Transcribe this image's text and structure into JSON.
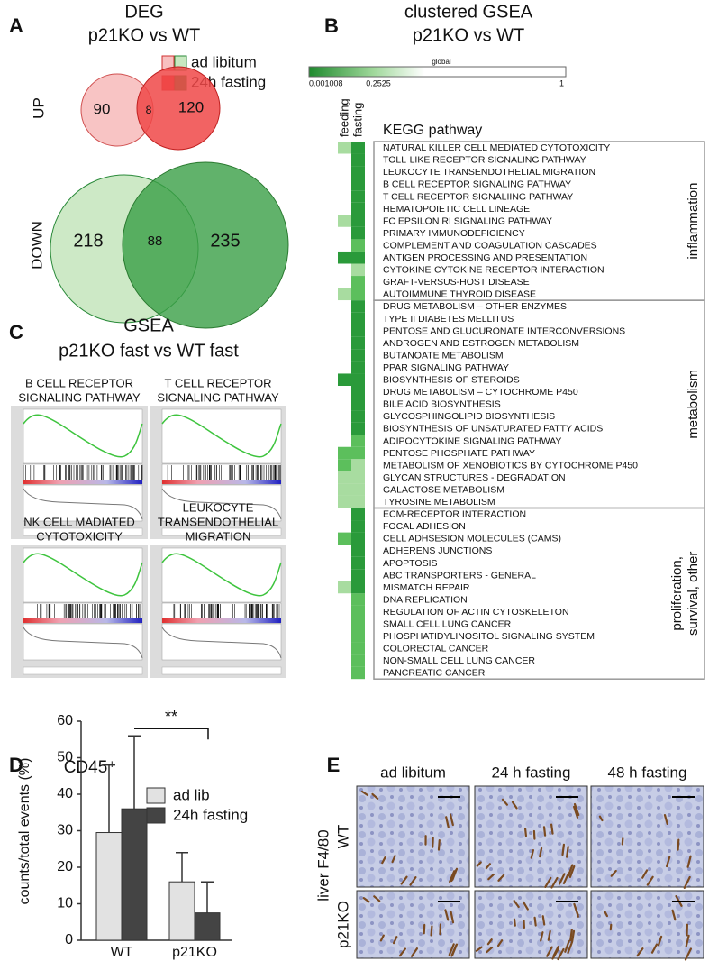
{
  "panel_a": {
    "letter": "A",
    "title": "DEG",
    "subtitle": "p21KO vs WT",
    "legend": [
      "ad libitum",
      "24h fasting"
    ],
    "up_label": "UP",
    "down_label": "DOWN",
    "up": [
      90,
      8,
      120
    ],
    "down": [
      218,
      88,
      235
    ]
  },
  "panel_b": {
    "letter": "B",
    "title": "clustered GSEA",
    "subtitle": "p21KO vs WT",
    "scale_title": "global",
    "scale_labels": [
      "0.001008",
      "0.2525",
      "1"
    ],
    "columns": [
      "feeding",
      "fasting"
    ],
    "header": "KEGG pathway",
    "groups": [
      {
        "label": [
          "inflammation"
        ],
        "rows": [
          {
            "name": "NATURAL KILLER CELL MEDIATED CYTOTOXICITY",
            "feeding": "#a8dca0",
            "fasting": "#2a9a3a"
          },
          {
            "name": "TOLL-LIKE RECEPTOR SIGNALING PATHWAY",
            "feeding": "#ffffff",
            "fasting": "#2a9a3a"
          },
          {
            "name": "LEUKOCYTE TRANSENDOTHELIAL MIGRATION",
            "feeding": "#ffffff",
            "fasting": "#2a9a3a"
          },
          {
            "name": "B CELL RECEPTOR SIGNALING PATHWAY",
            "feeding": "#ffffff",
            "fasting": "#2a9a3a"
          },
          {
            "name": "T CELL RECEPTOR SIGNALIING PATHWAY",
            "feeding": "#ffffff",
            "fasting": "#2a9a3a"
          },
          {
            "name": "HEMATOPOIETIC CELL LINEAGE",
            "feeding": "#ffffff",
            "fasting": "#2a9a3a"
          },
          {
            "name": "FC EPSILON RI SIGNALING PATHWAY",
            "feeding": "#a8dca0",
            "fasting": "#2a9a3a"
          },
          {
            "name": "PRIMARY IMMUNODEFICIENCY",
            "feeding": "#ffffff",
            "fasting": "#2a9a3a"
          },
          {
            "name": "COMPLEMENT AND COAGULATION CASCADES",
            "feeding": "#ffffff",
            "fasting": "#5cbf5c"
          },
          {
            "name": "ANTIGEN PROCESSING AND PRESENTATION",
            "feeding": "#2a9a3a",
            "fasting": "#2a9a3a"
          },
          {
            "name": "CYTOKINE-CYTOKINE RECEPTOR INTERACTION",
            "feeding": "#ffffff",
            "fasting": "#a8dca0"
          },
          {
            "name": "GRAFT-VERSUS-HOST DISEASE",
            "feeding": "#ffffff",
            "fasting": "#5cbf5c"
          },
          {
            "name": "AUTOIMMUNE THYROID DISEASE",
            "feeding": "#a8dca0",
            "fasting": "#5cbf5c"
          }
        ]
      },
      {
        "label": [
          "metabolism"
        ],
        "rows": [
          {
            "name": "DRUG METABOLISM – OTHER ENZYMES",
            "feeding": "#ffffff",
            "fasting": "#2a9a3a"
          },
          {
            "name": "TYPE II DIABETES MELLITUS",
            "feeding": "#ffffff",
            "fasting": "#2a9a3a"
          },
          {
            "name": "PENTOSE AND GLUCURONATE INTERCONVERSIONS",
            "feeding": "#ffffff",
            "fasting": "#2a9a3a"
          },
          {
            "name": "ANDROGEN AND ESTROGEN METABOLISM",
            "feeding": "#ffffff",
            "fasting": "#2a9a3a"
          },
          {
            "name": "BUTANOATE METABOLISM",
            "feeding": "#ffffff",
            "fasting": "#2a9a3a"
          },
          {
            "name": "PPAR SIGNALING PATHWAY",
            "feeding": "#ffffff",
            "fasting": "#2a9a3a"
          },
          {
            "name": "BIOSYNTHESIS OF STEROIDS",
            "feeding": "#2a9a3a",
            "fasting": "#2a9a3a"
          },
          {
            "name": "DRUG METABOLISM – CYTOCHROME P450",
            "feeding": "#ffffff",
            "fasting": "#2a9a3a"
          },
          {
            "name": "BILE ACID BIOSYNTHESIS",
            "feeding": "#ffffff",
            "fasting": "#2a9a3a"
          },
          {
            "name": "GLYCOSPHINGOLIPID BIOSYNTHESIS",
            "feeding": "#ffffff",
            "fasting": "#2a9a3a"
          },
          {
            "name": "BIOSYNTHESIS OF UNSATURATED FATTY ACIDS",
            "feeding": "#ffffff",
            "fasting": "#2a9a3a"
          },
          {
            "name": "ADIPOCYTOKINE SIGNALING PATHWAY",
            "feeding": "#ffffff",
            "fasting": "#5cbf5c"
          },
          {
            "name": "PENTOSE PHOSPHATE PATHWAY",
            "feeding": "#5cbf5c",
            "fasting": "#5cbf5c"
          },
          {
            "name": "METABOLISM OF XENOBIOTICS BY CYTOCHROME P450",
            "feeding": "#5cbf5c",
            "fasting": "#a8dca0"
          },
          {
            "name": "GLYCAN STRUCTURES - DEGRADATION",
            "feeding": "#a8dca0",
            "fasting": "#a8dca0"
          },
          {
            "name": "GALACTOSE METABOLISM",
            "feeding": "#a8dca0",
            "fasting": "#a8dca0"
          },
          {
            "name": "TYROSINE METABOLISM",
            "feeding": "#a8dca0",
            "fasting": "#a8dca0"
          }
        ]
      },
      {
        "label": [
          "proliferation,",
          "survival, other"
        ],
        "rows": [
          {
            "name": "ECM-RECEPTOR INTERACTION",
            "feeding": "#ffffff",
            "fasting": "#2a9a3a"
          },
          {
            "name": "FOCAL ADHESION",
            "feeding": "#ffffff",
            "fasting": "#2a9a3a"
          },
          {
            "name": "CELL ADHSESION MOLECULES (CAMS)",
            "feeding": "#5cbf5c",
            "fasting": "#2a9a3a"
          },
          {
            "name": "ADHERENS JUNCTIONS",
            "feeding": "#ffffff",
            "fasting": "#2a9a3a"
          },
          {
            "name": "APOPTOSIS",
            "feeding": "#ffffff",
            "fasting": "#2a9a3a"
          },
          {
            "name": "ABC TRANSPORTERS - GENERAL",
            "feeding": "#ffffff",
            "fasting": "#2a9a3a"
          },
          {
            "name": "MISMATCH REPAIR",
            "feeding": "#a8dca0",
            "fasting": "#2a9a3a"
          },
          {
            "name": "DNA REPLICATION",
            "feeding": "#ffffff",
            "fasting": "#5cbf5c"
          },
          {
            "name": "REGULATION OF ACTIN CYTOSKELETON",
            "feeding": "#ffffff",
            "fasting": "#5cbf5c"
          },
          {
            "name": "SMALL CELL LUNG CANCER",
            "feeding": "#ffffff",
            "fasting": "#5cbf5c"
          },
          {
            "name": "PHOSPHATIDYLINOSITOL SIGNALING SYSTEM",
            "feeding": "#ffffff",
            "fasting": "#5cbf5c"
          },
          {
            "name": "COLORECTAL CANCER",
            "feeding": "#ffffff",
            "fasting": "#5cbf5c"
          },
          {
            "name": "NON-SMALL CELL LUNG CANCER",
            "feeding": "#ffffff",
            "fasting": "#5cbf5c"
          },
          {
            "name": "PANCREATIC CANCER",
            "feeding": "#ffffff",
            "fasting": "#5cbf5c"
          }
        ]
      }
    ]
  },
  "panel_c": {
    "letter": "C",
    "title": "GSEA",
    "subtitle": "p21KO fast vs WT fast",
    "plots": [
      {
        "title": [
          "B CELL RECEPTOR",
          "SIGNALING PATHWAY"
        ]
      },
      {
        "title": [
          "T CELL RECEPTOR",
          "SIGNALING PATHWAY"
        ]
      },
      {
        "title": [
          "NK CELL MADIATED",
          "CYTOTOXICITY"
        ]
      },
      {
        "title": [
          "LEUKOCYTE",
          "TRANSENDOTHELIAL",
          "MIGRATION"
        ]
      }
    ]
  },
  "chart_data": {
    "type": "bar",
    "letter": "D",
    "title": "CD45⁺",
    "ylabel": "counts/total events (%)",
    "categories": [
      "WT",
      "p21KO"
    ],
    "series": [
      {
        "name": "ad lib",
        "color": "#e2e2e2",
        "values": [
          29.5,
          16
        ],
        "errors": [
          18.5,
          8
        ]
      },
      {
        "name": "24h fasting",
        "color": "#444444",
        "values": [
          36,
          7.5
        ],
        "errors": [
          20,
          8.5
        ]
      }
    ],
    "ylim": [
      0,
      60
    ],
    "yticks": [
      0,
      10,
      20,
      30,
      40,
      50,
      60
    ],
    "annotation": "**"
  },
  "panel_e": {
    "letter": "E",
    "columns": [
      "ad libitum",
      "24 h fasting",
      "48 h fasting"
    ],
    "rows": [
      "WT",
      "p21KO"
    ],
    "row_title": "liver F4/80"
  }
}
